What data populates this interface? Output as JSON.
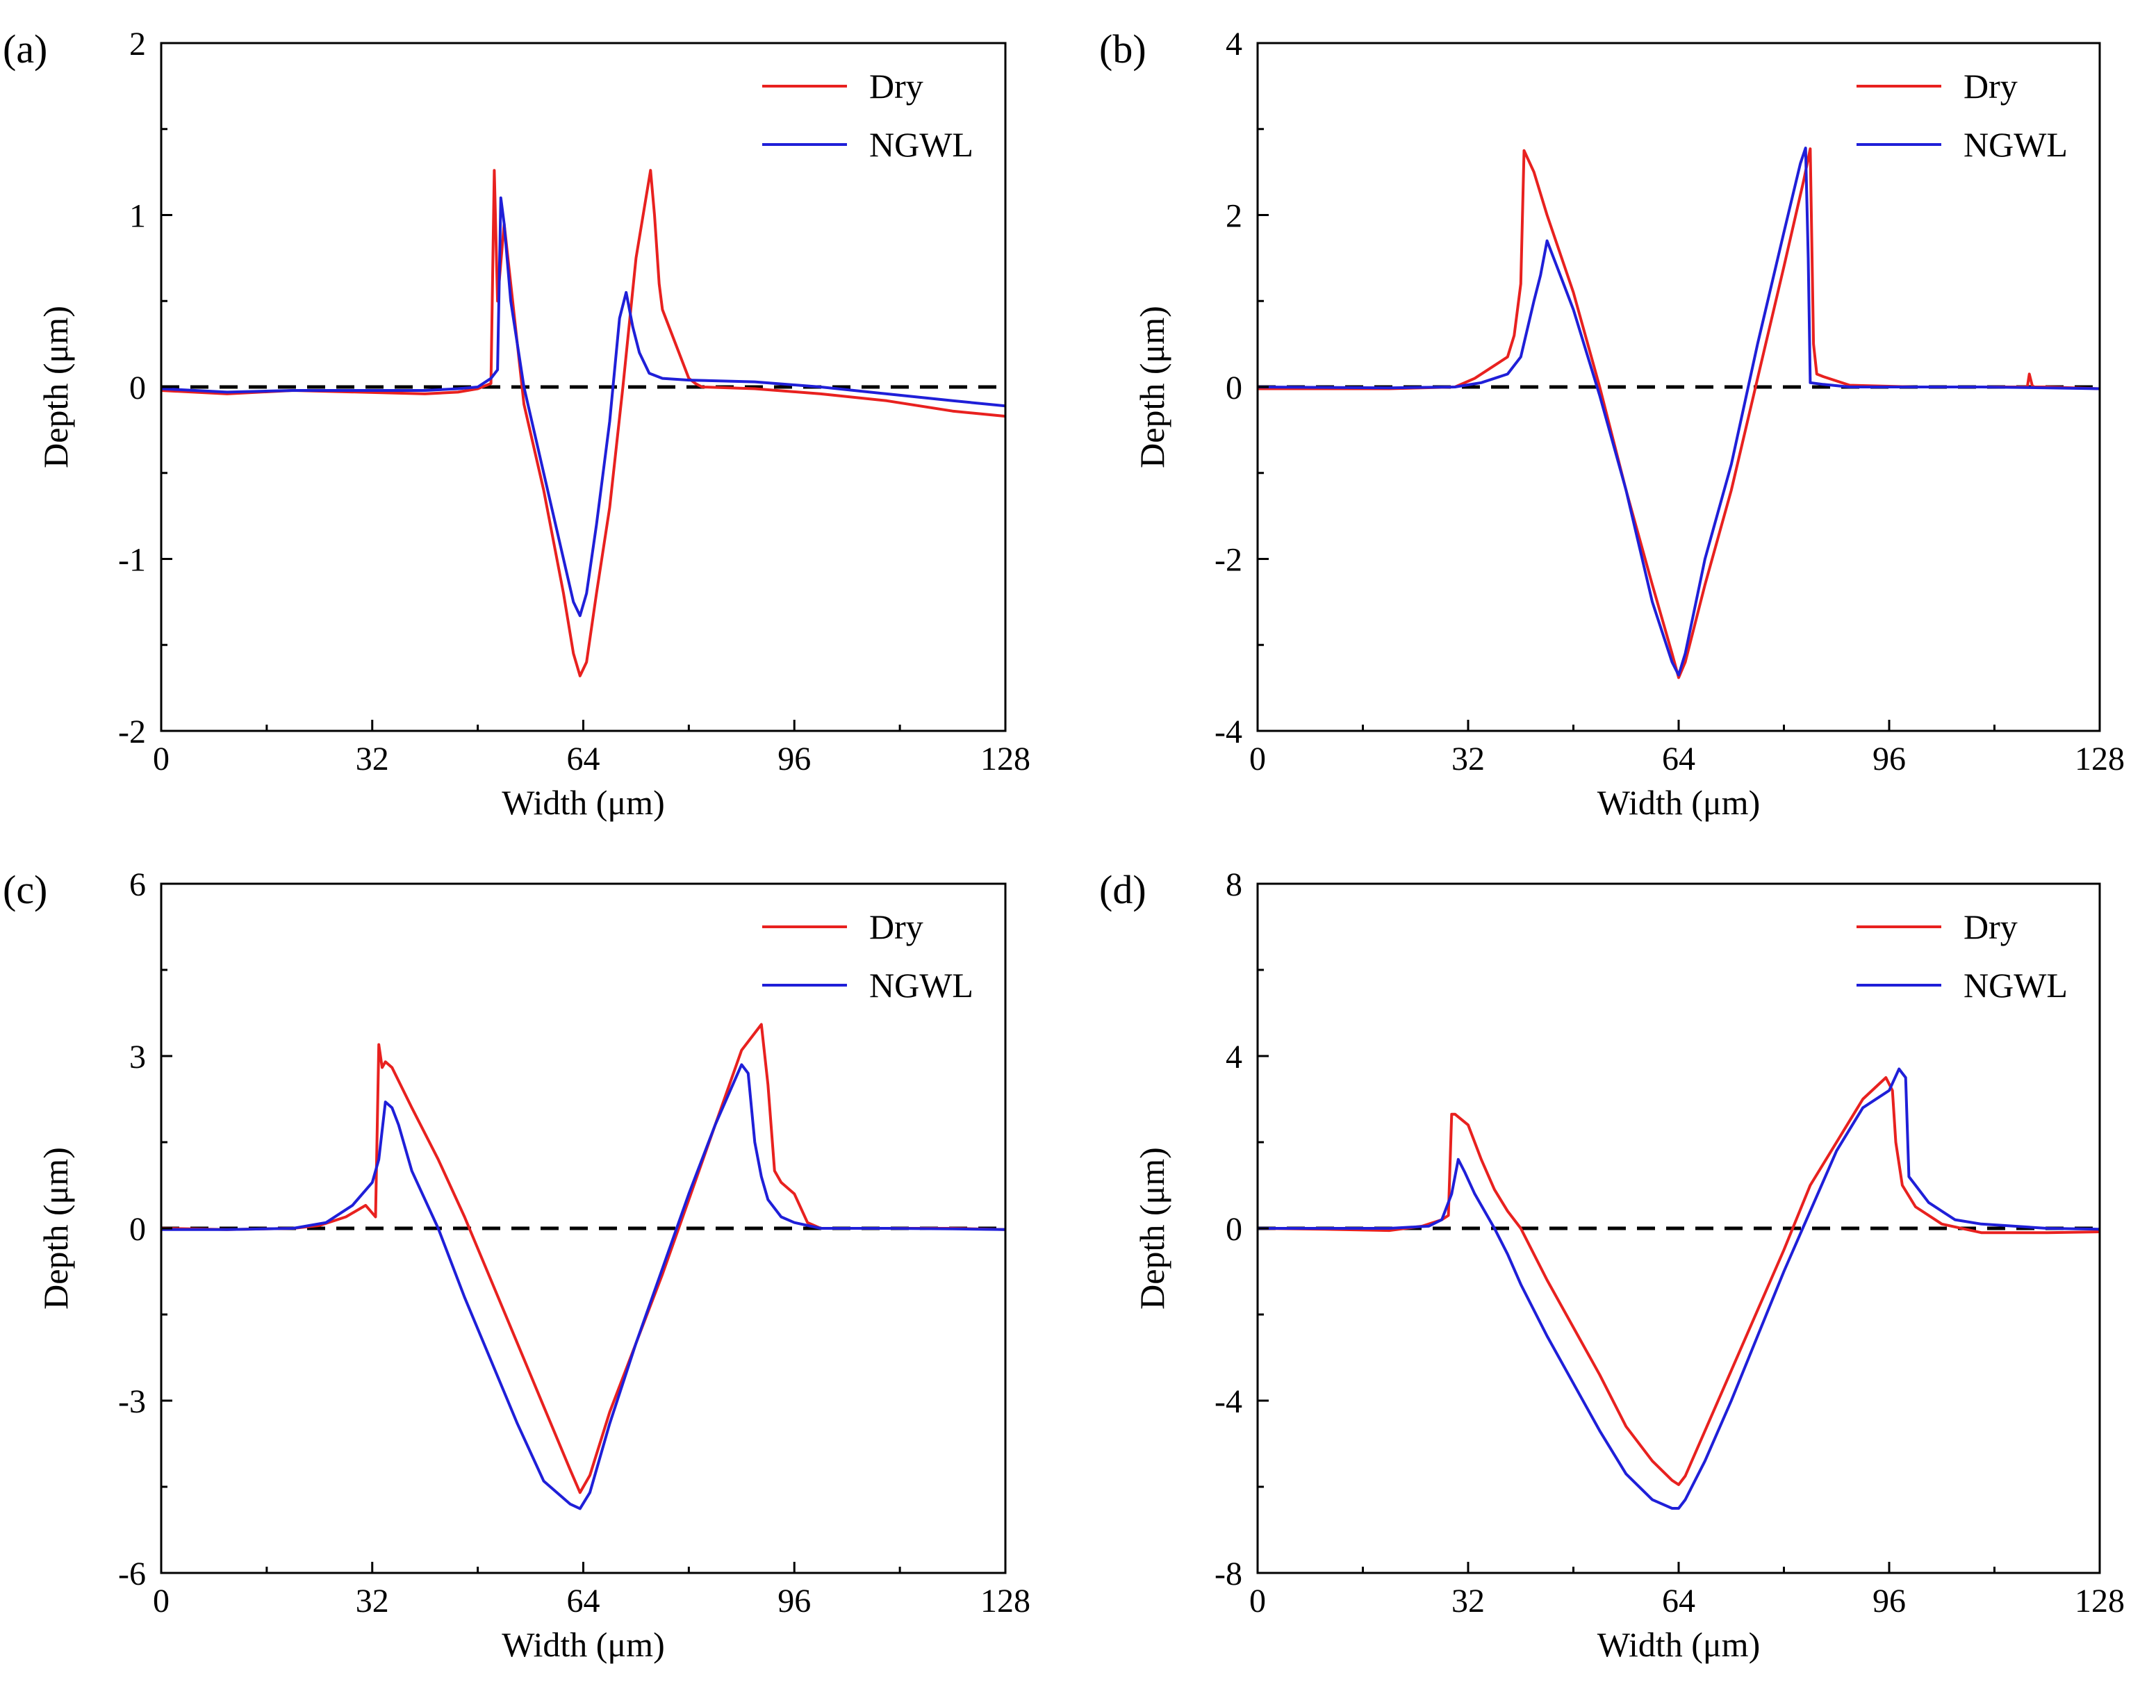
{
  "chart_data": [
    {
      "type": "line",
      "panel_label": "(a)",
      "xlabel": "Width (μm)",
      "ylabel": "Depth (μm)",
      "xlim": [
        0,
        128
      ],
      "ylim": [
        -2,
        2
      ],
      "xticks": [
        0,
        32,
        64,
        96,
        128
      ],
      "xtick_labels": [
        "0",
        "32",
        "64",
        "96",
        "128"
      ],
      "yticks": [
        -2,
        -1,
        0,
        1,
        2
      ],
      "ytick_labels": [
        "-2",
        "-1",
        "0",
        "1",
        "2"
      ],
      "legend": "top-right",
      "reference_line": {
        "y": 0,
        "style": "dashed"
      },
      "series": [
        {
          "name": "Dry",
          "color": "#e8211f",
          "x": [
            0,
            10,
            20,
            30,
            40,
            45,
            48,
            50,
            50.5,
            51,
            52,
            53,
            55,
            58,
            61,
            62.5,
            63.5,
            64.5,
            66,
            68,
            70,
            72,
            73.5,
            74.2,
            74.8,
            75.5,
            76,
            78,
            80,
            81,
            82,
            90,
            100,
            110,
            120,
            128
          ],
          "y": [
            -0.02,
            -0.04,
            -0.02,
            -0.03,
            -0.04,
            -0.03,
            -0.01,
            0.02,
            1.26,
            0.5,
            0.95,
            0.6,
            -0.1,
            -0.6,
            -1.2,
            -1.55,
            -1.68,
            -1.6,
            -1.2,
            -0.7,
            0,
            0.75,
            1.1,
            1.26,
            1.0,
            0.6,
            0.45,
            0.25,
            0.05,
            0.02,
            0,
            -0.01,
            -0.04,
            -0.08,
            -0.14,
            -0.17
          ]
        },
        {
          "name": "NGWL",
          "color": "#1f1fd8",
          "x": [
            0,
            10,
            20,
            30,
            40,
            45,
            48,
            50,
            51,
            51.5,
            52,
            53,
            55,
            58,
            61,
            62.5,
            63.5,
            64.5,
            66,
            68,
            69.5,
            70.5,
            71.5,
            72.5,
            74,
            76,
            80,
            90,
            100,
            110,
            120,
            128
          ],
          "y": [
            -0.01,
            -0.03,
            -0.02,
            -0.02,
            -0.02,
            -0.01,
            0.0,
            0.05,
            0.1,
            1.1,
            0.95,
            0.5,
            0.0,
            -0.5,
            -1.0,
            -1.25,
            -1.33,
            -1.2,
            -0.8,
            -0.2,
            0.4,
            0.55,
            0.35,
            0.2,
            0.08,
            0.05,
            0.04,
            0.03,
            0.0,
            -0.04,
            -0.08,
            -0.11
          ]
        }
      ]
    },
    {
      "type": "line",
      "panel_label": "(b)",
      "xlabel": "Width (μm)",
      "ylabel": "Depth (μm)",
      "xlim": [
        0,
        128
      ],
      "ylim": [
        -4,
        4
      ],
      "xticks": [
        0,
        32,
        64,
        96,
        128
      ],
      "xtick_labels": [
        "0",
        "32",
        "64",
        "96",
        "128"
      ],
      "yticks": [
        -4,
        -2,
        0,
        2,
        4
      ],
      "ytick_labels": [
        "-4",
        "-2",
        "0",
        "2",
        "4"
      ],
      "legend": "top-right",
      "reference_line": {
        "y": 0,
        "style": "dashed"
      },
      "series": [
        {
          "name": "Dry",
          "color": "#e8211f",
          "x": [
            0,
            20,
            30,
            33,
            36,
            38,
            39,
            40,
            40.5,
            42,
            44,
            48,
            52,
            56,
            60,
            63,
            64,
            65,
            68,
            72,
            76,
            80,
            83,
            84,
            84.5,
            85,
            86,
            90,
            100,
            110,
            117,
            117.3,
            117.8,
            120,
            128
          ],
          "y": [
            -0.02,
            -0.02,
            0.0,
            0.1,
            0.25,
            0.35,
            0.6,
            1.2,
            2.75,
            2.5,
            2.0,
            1.1,
            0.0,
            -1.2,
            -2.3,
            -3.1,
            -3.38,
            -3.2,
            -2.3,
            -1.2,
            0.1,
            1.4,
            2.4,
            2.77,
            0.5,
            0.15,
            0.12,
            0.02,
            0.0,
            0.0,
            0.0,
            0.15,
            0.0,
            0.0,
            -0.02
          ]
        },
        {
          "name": "NGWL",
          "color": "#1f1fd8",
          "x": [
            0,
            20,
            30,
            34,
            38,
            40,
            42,
            43,
            44,
            46,
            48,
            52,
            56,
            60,
            63,
            64,
            65,
            68,
            72,
            76,
            80,
            82.5,
            83.3,
            83.7,
            84,
            86,
            90,
            100,
            110,
            120,
            128
          ],
          "y": [
            0,
            -0.01,
            0.0,
            0.05,
            0.15,
            0.35,
            1.0,
            1.3,
            1.7,
            1.3,
            0.9,
            -0.1,
            -1.2,
            -2.5,
            -3.2,
            -3.35,
            -3.1,
            -2.0,
            -0.9,
            0.5,
            1.8,
            2.6,
            2.78,
            1.5,
            0.05,
            0.03,
            0.0,
            0.0,
            0.0,
            -0.01,
            -0.02
          ]
        }
      ]
    },
    {
      "type": "line",
      "panel_label": "(c)",
      "xlabel": "Width (μm)",
      "ylabel": "Depth (μm)",
      "xlim": [
        0,
        128
      ],
      "ylim": [
        -6,
        6
      ],
      "xticks": [
        0,
        32,
        64,
        96,
        128
      ],
      "xtick_labels": [
        "0",
        "32",
        "64",
        "96",
        "128"
      ],
      "yticks": [
        -6,
        -3,
        0,
        3,
        6
      ],
      "ytick_labels": [
        "-6",
        "-3",
        "0",
        "3",
        "6"
      ],
      "legend": "top-right",
      "reference_line": {
        "y": 0,
        "style": "dashed"
      },
      "series": [
        {
          "name": "Dry",
          "color": "#e8211f",
          "x": [
            0,
            10,
            20,
            24,
            28,
            31,
            32.5,
            33,
            33.5,
            34,
            35,
            38,
            42,
            46,
            50,
            54,
            58,
            62,
            63.5,
            65,
            68,
            72,
            76,
            80,
            84,
            88,
            90,
            91,
            92,
            93,
            94,
            96,
            98,
            100,
            110,
            120,
            128
          ],
          "y": [
            0,
            -0.02,
            0.0,
            0.05,
            0.2,
            0.4,
            0.2,
            3.2,
            2.8,
            2.9,
            2.8,
            2.1,
            1.2,
            0.2,
            -0.9,
            -2.0,
            -3.1,
            -4.2,
            -4.6,
            -4.3,
            -3.2,
            -2.0,
            -0.8,
            0.5,
            1.8,
            3.1,
            3.4,
            3.55,
            2.5,
            1.0,
            0.8,
            0.6,
            0.1,
            0.0,
            0.0,
            0.0,
            -0.02
          ]
        },
        {
          "name": "NGWL",
          "color": "#1f1fd8",
          "x": [
            0,
            10,
            20,
            25,
            29,
            32,
            33,
            34,
            35,
            36,
            38,
            42,
            46,
            50,
            54,
            58,
            62,
            63.5,
            65,
            68,
            72,
            76,
            80,
            84,
            88,
            89,
            90,
            91,
            92,
            94,
            96,
            100,
            110,
            120,
            128
          ],
          "y": [
            -0.02,
            -0.02,
            0.0,
            0.1,
            0.4,
            0.8,
            1.2,
            2.2,
            2.1,
            1.8,
            1.0,
            0.0,
            -1.2,
            -2.3,
            -3.4,
            -4.4,
            -4.8,
            -4.88,
            -4.6,
            -3.4,
            -2.0,
            -0.7,
            0.6,
            1.8,
            2.85,
            2.7,
            1.5,
            0.9,
            0.5,
            0.2,
            0.1,
            0.0,
            0.0,
            -0.01,
            -0.02
          ]
        }
      ]
    },
    {
      "type": "line",
      "panel_label": "(d)",
      "xlabel": "Width (μm)",
      "ylabel": "Depth (μm)",
      "xlim": [
        0,
        128
      ],
      "ylim": [
        -8,
        8
      ],
      "xticks": [
        0,
        32,
        64,
        96,
        128
      ],
      "xtick_labels": [
        "0",
        "32",
        "64",
        "96",
        "128"
      ],
      "yticks": [
        -8,
        -4,
        0,
        4,
        8
      ],
      "ytick_labels": [
        "-8",
        "-4",
        "0",
        "4",
        "8"
      ],
      "legend": "top-right",
      "reference_line": {
        "y": 0,
        "style": "dashed"
      },
      "series": [
        {
          "name": "Dry",
          "color": "#e8211f",
          "x": [
            0,
            10,
            20,
            25,
            28,
            29,
            29.5,
            30,
            32,
            34,
            36,
            38,
            40,
            44,
            48,
            52,
            56,
            60,
            63,
            64,
            65,
            68,
            72,
            76,
            80,
            84,
            88,
            92,
            95.5,
            96.5,
            97,
            98,
            100,
            104,
            110,
            120,
            128
          ],
          "y": [
            0,
            -0.02,
            -0.05,
            0.05,
            0.2,
            0.3,
            2.65,
            2.65,
            2.4,
            1.6,
            0.9,
            0.4,
            0.0,
            -1.2,
            -2.3,
            -3.4,
            -4.6,
            -5.4,
            -5.85,
            -5.95,
            -5.75,
            -4.7,
            -3.3,
            -1.9,
            -0.5,
            1.0,
            2.0,
            3.0,
            3.5,
            3.2,
            2.0,
            1.0,
            0.5,
            0.1,
            -0.1,
            -0.1,
            -0.08
          ]
        },
        {
          "name": "NGWL",
          "color": "#1f1fd8",
          "x": [
            0,
            10,
            20,
            26,
            28,
            29.5,
            30.5,
            31.5,
            33,
            36,
            38,
            40,
            44,
            48,
            52,
            56,
            60,
            63,
            64,
            65,
            68,
            72,
            76,
            80,
            84,
            88,
            92,
            96,
            97.5,
            98.5,
            99,
            100,
            102,
            106,
            110,
            120,
            128
          ],
          "y": [
            0,
            0.0,
            0.0,
            0.05,
            0.2,
            0.8,
            1.6,
            1.3,
            0.8,
            0.0,
            -0.6,
            -1.3,
            -2.5,
            -3.6,
            -4.7,
            -5.7,
            -6.3,
            -6.5,
            -6.5,
            -6.3,
            -5.4,
            -4.0,
            -2.5,
            -1.0,
            0.4,
            1.8,
            2.8,
            3.2,
            3.7,
            3.5,
            1.2,
            1.0,
            0.6,
            0.2,
            0.1,
            0.0,
            -0.02
          ]
        }
      ]
    }
  ]
}
